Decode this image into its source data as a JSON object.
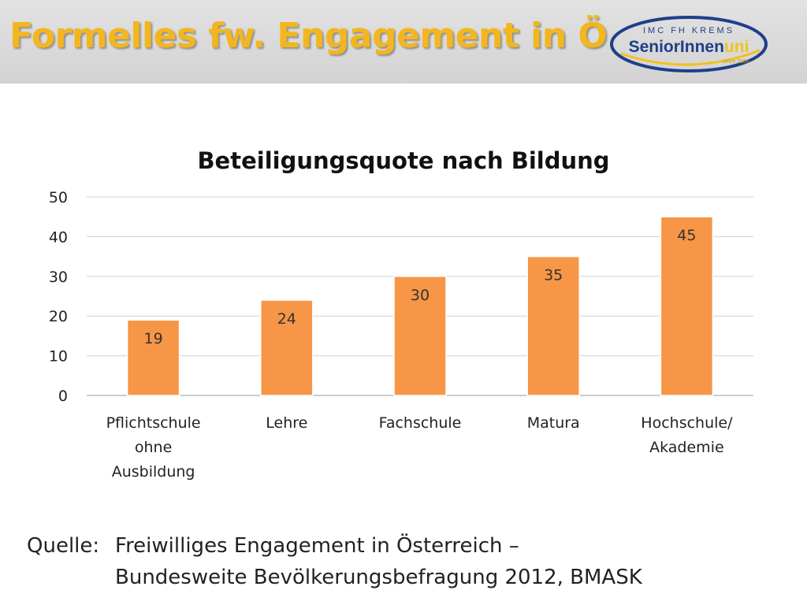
{
  "slide": {
    "title": "Formelles fw. Engagement in Ö"
  },
  "logo": {
    "top_text": "IMC FH KREMS",
    "brand_main": "SeniorInnen",
    "brand_accent": "uni",
    "sub_text": "since 2005",
    "ring_color": "#1f3f8a",
    "accent_color": "#f2c21a"
  },
  "chart_data": {
    "type": "bar",
    "title": "Beteiligungsquote nach Bildung",
    "categories": [
      [
        "Pflichtschule",
        "ohne",
        "Ausbildung"
      ],
      [
        "Lehre"
      ],
      [
        "Fachschule"
      ],
      [
        "Matura"
      ],
      [
        "Hochschule/",
        "Akademie"
      ]
    ],
    "values": [
      19,
      24,
      30,
      35,
      45
    ],
    "value_labels": [
      "19",
      "24",
      "30",
      "35",
      "45"
    ],
    "ylim": [
      0,
      50
    ],
    "yticks": [
      "0",
      "10",
      "20",
      "30",
      "40",
      "50"
    ],
    "grid": true,
    "legend": "none",
    "bar_color": "#f79646"
  },
  "source": {
    "label": "Quelle:",
    "line1": "Freiwilliges Engagement in Österreich –",
    "line2": "Bundesweite Bevölkerungsbefragung 2012, BMASK"
  }
}
